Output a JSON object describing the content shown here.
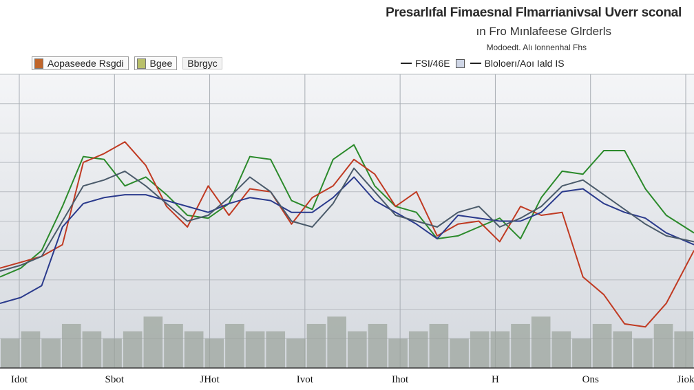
{
  "chart_data": {
    "type": "line",
    "title": "Presarlıfal Fimaesnal Flmarrianivsal Uverr sconal",
    "subtitle": "ın Fro Mınlafeese Glrderls",
    "note": "Modoedt. Alı lonnenhal Fhs",
    "legend_left": [
      {
        "label": "Aopaseede Rsgdi",
        "color": "#c0652a"
      },
      {
        "label": "Bgee",
        "color": "#b9c06a"
      },
      {
        "label": "Bbrgyc",
        "color": ""
      }
    ],
    "legend_right": [
      {
        "label": "FSI/46E"
      },
      {
        "label": "Bloloerı/Aoı Iald IS"
      }
    ],
    "x_tick_labels": [
      "Idot",
      "Sbot",
      "JHot",
      "Ivot",
      "Ihot",
      "H",
      "Ons",
      "Jiok"
    ],
    "ylim": [
      0,
      100
    ],
    "grid": true,
    "colors": {
      "green": "#2b8a2b",
      "red": "#c03a22",
      "navy": "#2a3a8c",
      "slate": "#4a5a6a",
      "volume": "#9aa29a"
    },
    "x": [
      0,
      3,
      6,
      9,
      12,
      15,
      18,
      21,
      24,
      27,
      30,
      33,
      36,
      39,
      42,
      45,
      48,
      51,
      54,
      57,
      60,
      63,
      66,
      69,
      72,
      75,
      78,
      81,
      84,
      87,
      90,
      93,
      96,
      100
    ],
    "series": [
      {
        "values": [
          31,
          34,
          40,
          55,
          72,
          71,
          62,
          65,
          59,
          52,
          51,
          56,
          72,
          71,
          57,
          54,
          71,
          76,
          62,
          55,
          53,
          44,
          45,
          48,
          51,
          44,
          58,
          67,
          66,
          74,
          74,
          61,
          52,
          46
        ],
        "color": "#2b8a2b"
      },
      {
        "values": [
          34,
          36,
          38,
          42,
          70,
          73,
          77,
          69,
          55,
          48,
          62,
          52,
          61,
          60,
          49,
          58,
          62,
          71,
          66,
          55,
          60,
          45,
          49,
          50,
          43,
          55,
          52,
          53,
          31,
          25,
          15,
          14,
          22,
          40
        ],
        "color": "#c03a22"
      },
      {
        "values": [
          22,
          24,
          28,
          48,
          56,
          58,
          59,
          59,
          57,
          55,
          53,
          56,
          58,
          57,
          53,
          53,
          58,
          65,
          57,
          53,
          49,
          44,
          52,
          51,
          50,
          50,
          53,
          60,
          61,
          56,
          53,
          51,
          46,
          42
        ],
        "color": "#2a3a8c"
      },
      {
        "values": [
          33,
          35,
          38,
          50,
          62,
          64,
          67,
          62,
          56,
          50,
          52,
          58,
          65,
          60,
          50,
          48,
          56,
          68,
          60,
          52,
          50,
          48,
          53,
          55,
          48,
          51,
          55,
          62,
          64,
          59,
          54,
          49,
          45,
          43
        ],
        "color": "#4a5a6a"
      }
    ],
    "volume": [
      4,
      5,
      4,
      6,
      5,
      4,
      5,
      7,
      6,
      5,
      4,
      6,
      5,
      5,
      4,
      6,
      7,
      5,
      6,
      4,
      5,
      6,
      4,
      5,
      5,
      6,
      7,
      5,
      4,
      6,
      5,
      4,
      6,
      5
    ]
  }
}
